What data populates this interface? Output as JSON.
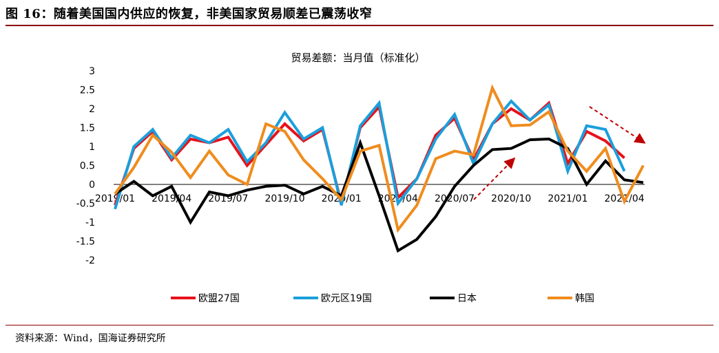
{
  "figure_title": "图 16：随着美国国内供应的恢复，非美国家贸易顺差已震荡收窄",
  "source": "资料来源：Wind，国海证券研究所",
  "chart_data": {
    "type": "line",
    "title": "贸易差额：当月值（标准化）",
    "xlabel": "",
    "ylabel": "",
    "ylim": [
      -2,
      3
    ],
    "yticks": [
      3,
      2.5,
      2,
      1.5,
      1,
      0.5,
      0,
      -0.5,
      -1,
      -1.5,
      -2
    ],
    "x": [
      "2019/01",
      "2019/02",
      "2019/03",
      "2019/04",
      "2019/05",
      "2019/06",
      "2019/07",
      "2019/08",
      "2019/09",
      "2019/10",
      "2019/11",
      "2019/12",
      "2020/01",
      "2020/02",
      "2020/03",
      "2020/04",
      "2020/05",
      "2020/06",
      "2020/07",
      "2020/08",
      "2020/09",
      "2020/10",
      "2020/11",
      "2020/12",
      "2021/01",
      "2021/02",
      "2021/03",
      "2021/04",
      "2021/05"
    ],
    "xtick_labels": [
      "2019/01",
      "2019/04",
      "2019/07",
      "2019/10",
      "2020/01",
      "2020/04",
      "2020/07",
      "2020/10",
      "2021/01",
      "2021/04"
    ],
    "grid": false,
    "legend_position": "bottom",
    "series": [
      {
        "name": "欧盟27国",
        "color": "#e8111a",
        "values": [
          -0.55,
          0.95,
          1.4,
          0.65,
          1.2,
          1.1,
          1.25,
          0.5,
          1.05,
          1.6,
          1.15,
          1.45,
          -0.5,
          1.5,
          2.05,
          -0.35,
          0.15,
          1.3,
          1.75,
          0.65,
          1.6,
          2.0,
          1.7,
          2.15,
          0.55,
          1.4,
          1.15,
          0.7,
          null
        ]
      },
      {
        "name": "欧元区19国",
        "color": "#1a9fdc",
        "values": [
          -0.65,
          1.0,
          1.45,
          0.7,
          1.3,
          1.1,
          1.45,
          0.6,
          1.1,
          1.9,
          1.2,
          1.5,
          -0.55,
          1.55,
          2.15,
          -0.5,
          0.15,
          1.2,
          1.85,
          0.55,
          1.6,
          2.2,
          1.7,
          2.1,
          0.35,
          1.55,
          1.45,
          0.35,
          null
        ]
      },
      {
        "name": "日本",
        "color": "#000000",
        "values": [
          -0.25,
          0.08,
          -0.3,
          -0.05,
          -1.0,
          -0.2,
          -0.3,
          -0.15,
          -0.05,
          -0.02,
          -0.25,
          -0.05,
          -0.3,
          1.1,
          -0.3,
          -1.75,
          -1.45,
          -0.85,
          -0.05,
          0.5,
          0.92,
          0.95,
          1.18,
          1.2,
          0.95,
          0.0,
          0.62,
          0.12,
          0.05
        ]
      },
      {
        "name": "韩国",
        "color": "#ef8c1e",
        "values": [
          -0.25,
          0.45,
          1.3,
          0.85,
          0.18,
          0.88,
          0.25,
          0.0,
          1.6,
          1.4,
          0.65,
          0.15,
          -0.4,
          0.88,
          1.03,
          -1.2,
          -0.55,
          0.68,
          0.88,
          0.78,
          2.55,
          1.55,
          1.57,
          1.92,
          0.88,
          0.35,
          0.95,
          -0.45,
          0.5
        ]
      }
    ]
  }
}
